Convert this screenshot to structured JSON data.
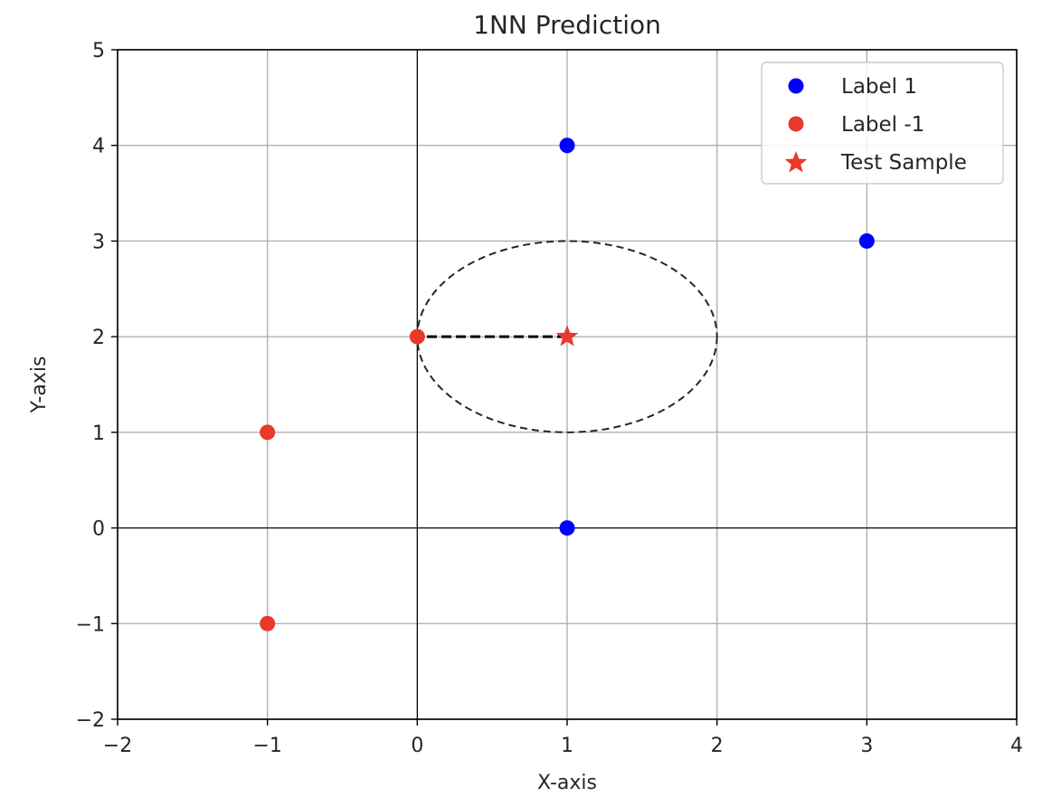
{
  "chart_data": {
    "type": "scatter",
    "title": "1NN Prediction",
    "xlabel": "X-axis",
    "ylabel": "Y-axis",
    "xlim": [
      -2,
      4
    ],
    "ylim": [
      -2,
      5
    ],
    "xticks": [
      -2,
      -1,
      0,
      1,
      2,
      3,
      4
    ],
    "yticks": [
      -2,
      -1,
      0,
      1,
      2,
      3,
      4,
      5
    ],
    "xtick_labels": [
      "−2",
      "−1",
      "0",
      "1",
      "2",
      "3",
      "4"
    ],
    "ytick_labels": [
      "−2",
      "−1",
      "0",
      "1",
      "2",
      "3",
      "4",
      "5"
    ],
    "grid": true,
    "legend_position": "top-right",
    "series": [
      {
        "name": "Label 1",
        "marker": "circle",
        "color": "#0000ff",
        "points": [
          [
            1,
            4
          ],
          [
            3,
            3
          ],
          [
            1,
            0
          ]
        ]
      },
      {
        "name": "Label -1",
        "marker": "circle",
        "color": "#e8392b",
        "points": [
          [
            0,
            2
          ],
          [
            -1,
            1
          ],
          [
            -1,
            -1
          ]
        ]
      },
      {
        "name": "Test Sample",
        "marker": "star",
        "color": "#e8392b",
        "points": [
          [
            1,
            2
          ]
        ]
      }
    ],
    "annotations": {
      "nearest_neighbor_line": {
        "from": [
          1,
          2
        ],
        "to": [
          0,
          2
        ],
        "style": "dashed",
        "color": "#000000"
      },
      "radius_circle": {
        "center": [
          1,
          2
        ],
        "radius": 1,
        "style": "dashed",
        "color": "#262626"
      }
    },
    "reference_lines": {
      "x0": true,
      "y0": true,
      "color": "#000000"
    }
  }
}
